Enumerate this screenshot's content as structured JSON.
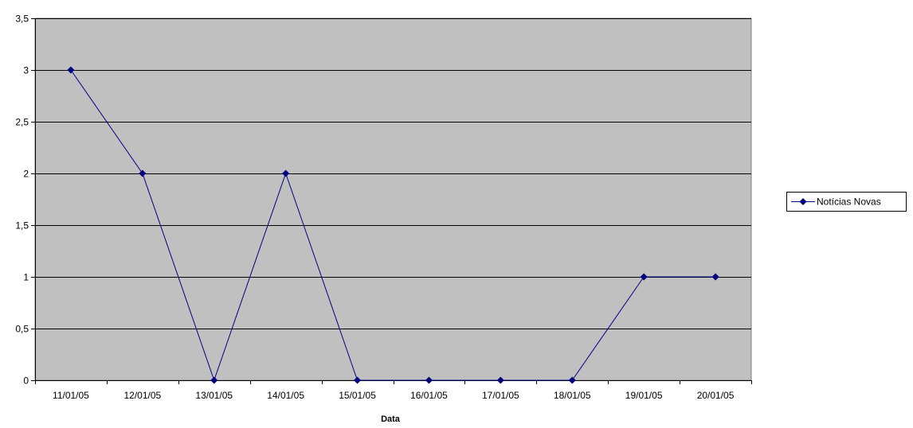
{
  "chart_data": {
    "type": "line",
    "title": "",
    "xlabel": "Data",
    "ylabel": "",
    "categories": [
      "11/01/05",
      "12/01/05",
      "13/01/05",
      "14/01/05",
      "15/01/05",
      "16/01/05",
      "17/01/05",
      "18/01/05",
      "19/01/05",
      "20/01/05"
    ],
    "series": [
      {
        "name": "Notícias Novas",
        "values": [
          3,
          2,
          0,
          2,
          0,
          0,
          0,
          0,
          1,
          1
        ],
        "color": "#000080",
        "marker": "diamond"
      }
    ],
    "ylim": [
      0,
      3.5
    ],
    "yticks": [
      0,
      0.5,
      1,
      1.5,
      2,
      2.5,
      3,
      3.5
    ],
    "ytick_labels": [
      "0",
      "0,5",
      "1",
      "1,5",
      "2",
      "2,5",
      "3",
      "3,5"
    ],
    "grid": "horizontal",
    "legend_position": "right",
    "colors": {
      "plot_background": "#c0c0c0",
      "gridline": "#000000",
      "series": "#000080"
    }
  }
}
